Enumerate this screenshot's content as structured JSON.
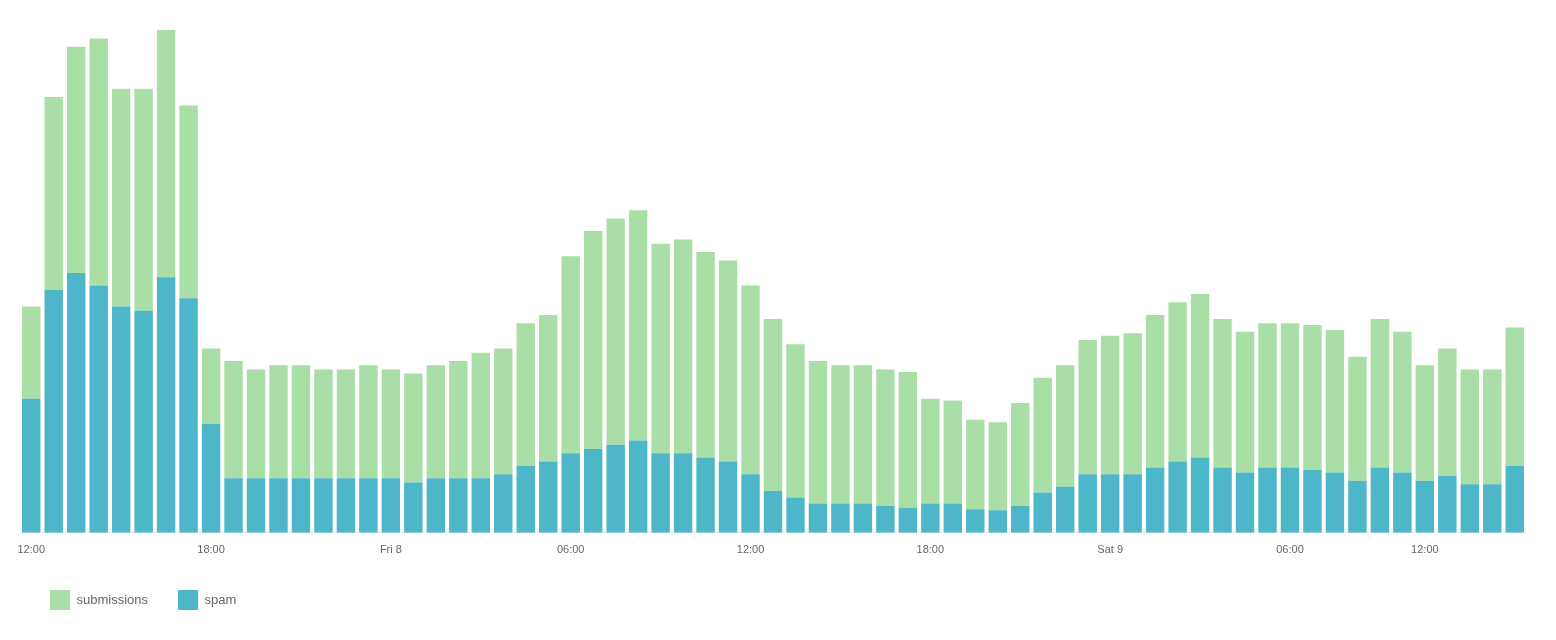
{
  "chart_data": {
    "type": "bar",
    "categories": [
      "12:00",
      null,
      null,
      null,
      null,
      null,
      null,
      null,
      "18:00",
      null,
      null,
      null,
      null,
      null,
      null,
      null,
      "Fri 8",
      null,
      null,
      null,
      null,
      null,
      null,
      null,
      "06:00",
      null,
      null,
      null,
      null,
      null,
      null,
      null,
      "12:00",
      null,
      null,
      null,
      null,
      null,
      null,
      null,
      "18:00",
      null,
      null,
      null,
      null,
      null,
      null,
      null,
      "Sat 9",
      null,
      null,
      null,
      null,
      null,
      null,
      null,
      "06:00",
      null,
      null,
      null,
      null,
      null,
      "12:00",
      null,
      null,
      null,
      null
    ],
    "series": [
      {
        "name": "submissions",
        "color": "#aadea7",
        "values": [
          110,
          230,
          270,
          295,
          260,
          265,
          295,
          230,
          90,
          140,
          130,
          135,
          135,
          130,
          130,
          135,
          130,
          130,
          135,
          140,
          150,
          150,
          170,
          175,
          235,
          260,
          270,
          275,
          250,
          255,
          245,
          240,
          225,
          205,
          183,
          170,
          165,
          165,
          163,
          162,
          125,
          123,
          107,
          105,
          123,
          137,
          145,
          160,
          165,
          168,
          182,
          190,
          195,
          177,
          168,
          172,
          172,
          173,
          170,
          148,
          177,
          168,
          138,
          152,
          137,
          137,
          165
        ]
      },
      {
        "name": "spam",
        "color": "#4db6c8",
        "values": [
          160,
          290,
          310,
          295,
          270,
          265,
          305,
          280,
          130,
          65,
          65,
          65,
          65,
          65,
          65,
          65,
          65,
          60,
          65,
          65,
          65,
          70,
          80,
          85,
          95,
          100,
          105,
          110,
          95,
          95,
          90,
          85,
          70,
          50,
          42,
          35,
          35,
          35,
          32,
          30,
          35,
          35,
          28,
          27,
          32,
          48,
          55,
          70,
          70,
          70,
          78,
          85,
          90,
          78,
          72,
          78,
          78,
          75,
          72,
          62,
          78,
          72,
          62,
          68,
          58,
          58,
          80
        ]
      }
    ],
    "stacked": true,
    "ylim": [
      0,
      600
    ],
    "grid": false,
    "legend": "bottom left",
    "tick_labels": "x"
  }
}
